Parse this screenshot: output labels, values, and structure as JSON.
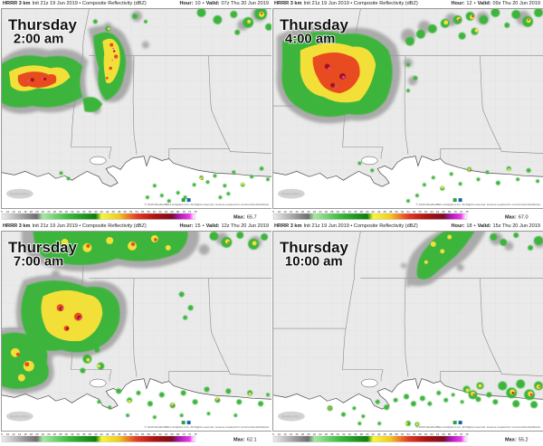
{
  "branding": {
    "watermark": "WeatherBELL",
    "copyright": "© 2019 WeatherBELL Analytics LLC. All Rights reserved. License required for commercial distribution."
  },
  "colors": {
    "land": "#eaeaea",
    "water": "#ffffff",
    "echo_green": "#3cb53c",
    "echo_yellow": "#f2df38",
    "echo_red": "#e03a22",
    "echo_magenta": "#e040e0"
  },
  "colorbar": {
    "ticks": [
      "5",
      "10",
      "12",
      "14",
      "16",
      "18",
      "20",
      "22",
      "24",
      "26",
      "28",
      "30",
      "32",
      "34",
      "36",
      "38",
      "40",
      "42",
      "44",
      "46",
      "48",
      "50",
      "52",
      "54",
      "56",
      "58",
      "60",
      "62",
      "64",
      "66",
      "68",
      "70",
      "72",
      "75"
    ]
  },
  "panels": [
    {
      "header": {
        "model": "HRRR 3 km",
        "init": "Init 21z 19 Jun 2019 • Composite Reflectivity (dBZ)",
        "hour_label": "Hour:",
        "hour": "10",
        "sep": "•",
        "valid_label": "Valid:",
        "valid": "07z Thu 20 Jun 2019"
      },
      "title": {
        "day": "Thursday",
        "time": "2:00 am"
      },
      "legend": {
        "max_label": "Max:",
        "max": "65.7"
      }
    },
    {
      "header": {
        "model": "HRRR 3 km",
        "init": "Init 21z 19 Jun 2019 • Composite Reflectivity (dBZ)",
        "hour_label": "Hour:",
        "hour": "12",
        "sep": "•",
        "valid_label": "Valid:",
        "valid": "09z Thu 20 Jun 2019"
      },
      "title": {
        "day": "Thursday",
        "time": "4:00 am"
      },
      "legend": {
        "max_label": "Max:",
        "max": "67.0"
      }
    },
    {
      "header": {
        "model": "HRRR 3 km",
        "init": "Init 21z 19 Jun 2019 • Composite Reflectivity (dBZ)",
        "hour_label": "Hour:",
        "hour": "15",
        "sep": "•",
        "valid_label": "Valid:",
        "valid": "12z Thu 20 Jun 2019"
      },
      "title": {
        "day": "Thursday",
        "time": "7:00 am"
      },
      "legend": {
        "max_label": "Max:",
        "max": "62.1"
      }
    },
    {
      "header": {
        "model": "HRRR 3 km",
        "init": "Init 21z 19 Jun 2019 • Composite Reflectivity (dBZ)",
        "hour_label": "Hour:",
        "hour": "18",
        "sep": "•",
        "valid_label": "Valid:",
        "valid": "15z Thu 20 Jun 2019"
      },
      "title": {
        "day": "Thursday",
        "time": "10:00 am"
      },
      "legend": {
        "max_label": "Max:",
        "max": "55.2"
      }
    }
  ]
}
